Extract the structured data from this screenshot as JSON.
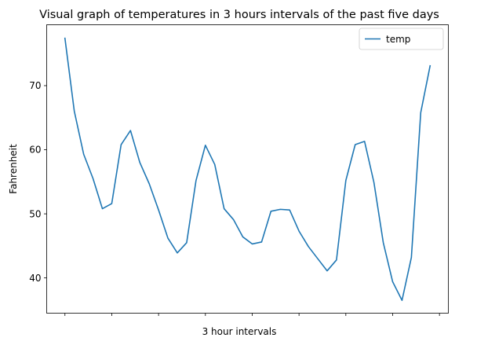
{
  "chart_data": {
    "type": "line",
    "title": "Visual graph of temperatures in 3 hours intervals of the past five days",
    "xlabel": "3 hour intervals",
    "ylabel": "Fahrenheit",
    "ylim": [
      34.5,
      79.5
    ],
    "xlim": [
      -1.95,
      40.95
    ],
    "yticks": [
      40,
      50,
      60,
      70
    ],
    "xticks": [
      0,
      5,
      10,
      15,
      20,
      25,
      30,
      35,
      40
    ],
    "grid": false,
    "legend": {
      "placement": "top-right"
    },
    "series": [
      {
        "name": "temp",
        "color": "#1f77b4",
        "x": [
          0,
          1,
          2,
          3,
          4,
          5,
          6,
          7,
          8,
          9,
          10,
          11,
          12,
          13,
          14,
          15,
          16,
          17,
          18,
          19,
          20,
          21,
          22,
          23,
          24,
          25,
          26,
          27,
          28,
          29,
          30,
          31,
          32,
          33,
          34,
          35,
          36,
          37,
          38,
          39
        ],
        "values": [
          77.4,
          66.0,
          59.3,
          55.5,
          50.8,
          51.6,
          60.8,
          63.0,
          58.0,
          54.7,
          50.6,
          46.2,
          43.9,
          45.5,
          55.2,
          60.7,
          57.7,
          50.8,
          49.1,
          46.4,
          45.3,
          45.6,
          50.4,
          50.7,
          50.6,
          47.3,
          44.9,
          43.0,
          41.1,
          42.8,
          55.2,
          60.8,
          61.3,
          54.9,
          45.5,
          39.4,
          36.5,
          43.2,
          65.8,
          73.1
        ]
      }
    ]
  }
}
